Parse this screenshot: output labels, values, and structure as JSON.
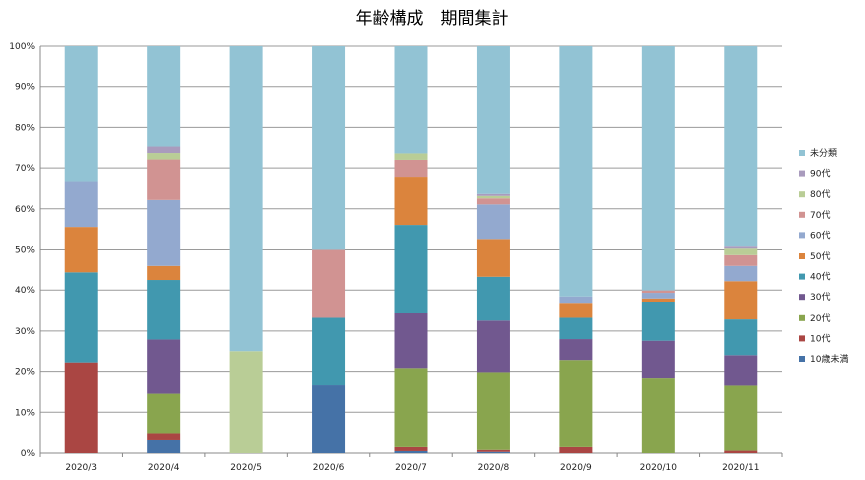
{
  "chart_data": {
    "type": "bar",
    "stacked": true,
    "normalized": true,
    "title": "年齢構成　期間集計",
    "xlabel": "",
    "ylabel": "",
    "ylim": [
      0,
      100
    ],
    "y_ticks": [
      "0%",
      "10%",
      "20%",
      "30%",
      "40%",
      "50%",
      "60%",
      "70%",
      "80%",
      "90%",
      "100%"
    ],
    "grid": true,
    "legend_position": "right",
    "categories": [
      "2020/3",
      "2020/4",
      "2020/5",
      "2020/6",
      "2020/7",
      "2020/8",
      "2020/9",
      "2020/10",
      "2020/11"
    ],
    "series": [
      {
        "name": "10歳未満",
        "color": "#4572A7",
        "values": [
          0,
          3.2,
          0,
          16.7,
          0.5,
          0.3,
          0,
          0,
          0
        ]
      },
      {
        "name": "10代",
        "color": "#AA4643",
        "values": [
          22.2,
          1.6,
          0,
          0,
          1.0,
          0.5,
          1.5,
          0,
          0.6
        ]
      },
      {
        "name": "20代",
        "color": "#89A54E",
        "values": [
          0,
          9.8,
          0,
          0,
          19.3,
          19.0,
          21.3,
          18.4,
          16.0
        ]
      },
      {
        "name": "30代",
        "color": "#71588F",
        "values": [
          0,
          13.3,
          0,
          0,
          13.6,
          12.8,
          5.2,
          9.2,
          7.4
        ]
      },
      {
        "name": "40代",
        "color": "#4198AF",
        "values": [
          22.2,
          14.6,
          0,
          16.6,
          21.6,
          10.7,
          5.3,
          9.5,
          8.9
        ]
      },
      {
        "name": "50代",
        "color": "#DB843D",
        "values": [
          11.1,
          3.5,
          0,
          0,
          11.8,
          9.2,
          3.5,
          0.8,
          9.3
        ]
      },
      {
        "name": "60代",
        "color": "#93A9CF",
        "values": [
          11.2,
          16.2,
          0,
          0,
          0,
          8.6,
          1.6,
          1.4,
          3.8
        ]
      },
      {
        "name": "70代",
        "color": "#D19392",
        "values": [
          0,
          9.9,
          0,
          16.7,
          4.2,
          1.5,
          0,
          0.6,
          2.7
        ]
      },
      {
        "name": "80代",
        "color": "#B9CD96",
        "values": [
          0,
          1.6,
          25.0,
          0,
          1.6,
          0.6,
          0,
          0,
          1.6
        ]
      },
      {
        "name": "90代",
        "color": "#A99BBD",
        "values": [
          0,
          1.6,
          0,
          0,
          0,
          0.5,
          0,
          0,
          0.5
        ]
      },
      {
        "name": "未分類",
        "color": "#92C3D4",
        "values": [
          33.3,
          24.7,
          75.0,
          50.0,
          26.4,
          36.3,
          61.6,
          60.1,
          49.2
        ]
      }
    ]
  }
}
